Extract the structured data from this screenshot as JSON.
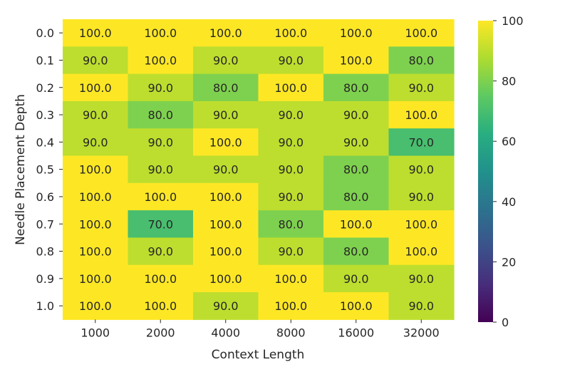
{
  "chart_data": {
    "type": "heatmap",
    "title": "",
    "xlabel": "Context Length",
    "ylabel": "Needle Placement Depth",
    "x_categories": [
      "1000",
      "2000",
      "4000",
      "8000",
      "16000",
      "32000"
    ],
    "y_categories": [
      "0.0",
      "0.1",
      "0.2",
      "0.3",
      "0.4",
      "0.5",
      "0.6",
      "0.7",
      "0.8",
      "0.9",
      "1.0"
    ],
    "values": [
      [
        100.0,
        100.0,
        100.0,
        100.0,
        100.0,
        100.0
      ],
      [
        90.0,
        100.0,
        90.0,
        90.0,
        100.0,
        80.0
      ],
      [
        100.0,
        90.0,
        80.0,
        100.0,
        80.0,
        90.0
      ],
      [
        90.0,
        80.0,
        90.0,
        90.0,
        90.0,
        100.0
      ],
      [
        90.0,
        90.0,
        100.0,
        90.0,
        90.0,
        70.0
      ],
      [
        100.0,
        90.0,
        90.0,
        90.0,
        80.0,
        90.0
      ],
      [
        100.0,
        100.0,
        100.0,
        90.0,
        80.0,
        90.0
      ],
      [
        100.0,
        70.0,
        100.0,
        80.0,
        100.0,
        100.0
      ],
      [
        100.0,
        90.0,
        100.0,
        90.0,
        80.0,
        100.0
      ],
      [
        100.0,
        100.0,
        100.0,
        100.0,
        90.0,
        90.0
      ],
      [
        100.0,
        100.0,
        90.0,
        100.0,
        100.0,
        90.0
      ]
    ],
    "value_format": "0.0",
    "colormap": "viridis",
    "vmin": 0,
    "vmax": 100,
    "colorbar_ticks": [
      0,
      20,
      40,
      60,
      80,
      100
    ],
    "legend": "colorbar-right",
    "grid": false
  }
}
